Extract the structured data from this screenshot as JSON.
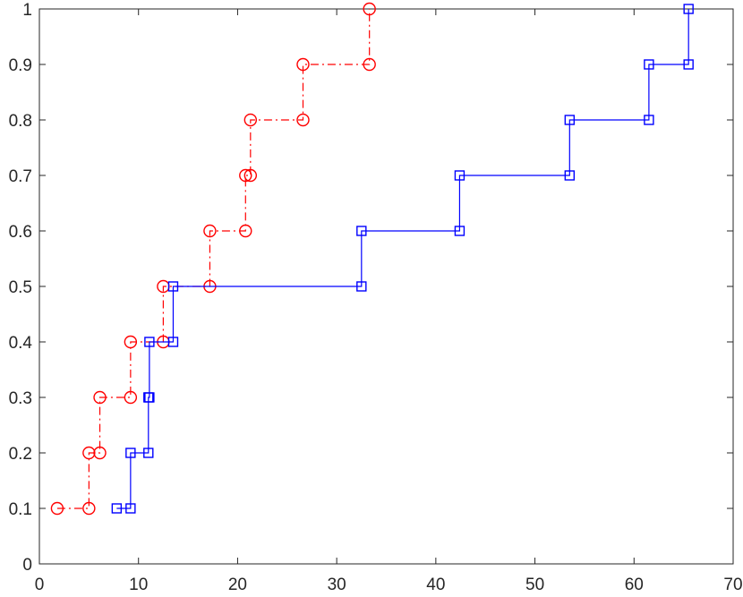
{
  "chart_data": {
    "type": "line",
    "step": true,
    "title": "",
    "xlabel": "",
    "ylabel": "",
    "xlim": [
      0,
      70
    ],
    "ylim": [
      0,
      1
    ],
    "xticks": [
      0,
      10,
      20,
      30,
      40,
      50,
      60,
      70
    ],
    "yticks": [
      0,
      0.1,
      0.2,
      0.3,
      0.4,
      0.5,
      0.6,
      0.7,
      0.8,
      0.9,
      1
    ],
    "xtick_labels": [
      "0",
      "10",
      "20",
      "30",
      "40",
      "50",
      "60",
      "70"
    ],
    "ytick_labels": [
      "0",
      "0.1",
      "0.2",
      "0.3",
      "0.4",
      "0.5",
      "0.6",
      "0.7",
      "0.8",
      "0.9",
      "1"
    ],
    "grid": false,
    "series": [
      {
        "color": "#ff0000",
        "line_style": "dash-dot",
        "marker": "circle",
        "x": [
          1.8,
          5.0,
          5.0,
          6.1,
          6.1,
          9.2,
          9.2,
          12.5,
          12.5,
          17.2,
          17.2,
          20.8,
          20.8,
          21.3,
          21.3,
          26.6,
          26.6,
          33.3,
          33.3
        ],
        "y": [
          0.1,
          0.1,
          0.2,
          0.2,
          0.3,
          0.3,
          0.4,
          0.4,
          0.5,
          0.5,
          0.6,
          0.6,
          0.7,
          0.7,
          0.8,
          0.8,
          0.9,
          0.9,
          1.0
        ]
      },
      {
        "color": "#0000ff",
        "line_style": "solid",
        "marker": "square",
        "x": [
          7.8,
          9.2,
          9.2,
          11.0,
          11.0,
          11.1,
          11.1,
          13.5,
          13.5,
          32.5,
          32.5,
          42.4,
          42.4,
          53.5,
          53.5,
          61.5,
          61.5,
          65.5,
          65.5
        ],
        "y": [
          0.1,
          0.1,
          0.2,
          0.2,
          0.3,
          0.3,
          0.4,
          0.4,
          0.5,
          0.5,
          0.6,
          0.6,
          0.7,
          0.7,
          0.8,
          0.8,
          0.9,
          0.9,
          1.0
        ]
      }
    ]
  }
}
